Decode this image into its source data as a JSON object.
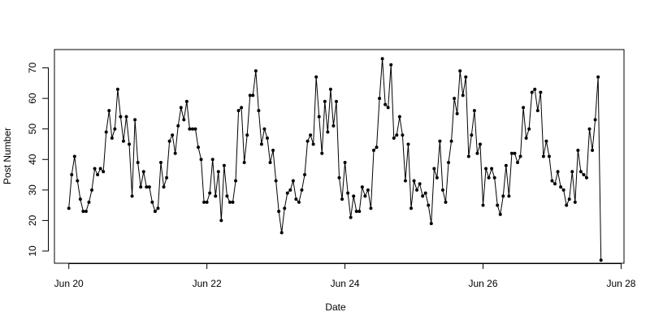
{
  "chart_data": {
    "type": "line",
    "title": "",
    "xlabel": "Date",
    "ylabel": "Post Number",
    "xlim": [
      "2015-06-19T19:00",
      "2015-06-28T01:00"
    ],
    "ylim": [
      6,
      76
    ],
    "xticks": [
      {
        "label": "Jun 20",
        "value": "2015-06-20T00:00"
      },
      {
        "label": "Jun 22",
        "value": "2015-06-22T00:00"
      },
      {
        "label": "Jun 24",
        "value": "2015-06-24T00:00"
      },
      {
        "label": "Jun 26",
        "value": "2015-06-26T00:00"
      },
      {
        "label": "Jun 28",
        "value": "2015-06-28T00:00"
      }
    ],
    "yticks": [
      10,
      20,
      30,
      40,
      50,
      60,
      70
    ],
    "grid": false,
    "x_start": "2015-06-20T00:00",
    "x_step_hours": 1,
    "series": [
      {
        "marker": "filled-circle",
        "color": "#000000",
        "values": [
          24,
          35,
          41,
          33,
          27,
          23,
          23,
          26,
          30,
          37,
          35,
          37,
          36,
          49,
          56,
          47,
          50,
          63,
          54,
          46,
          54,
          45,
          28,
          53,
          39,
          31,
          36,
          31,
          31,
          26,
          23,
          24,
          39,
          31,
          34,
          46,
          48,
          42,
          51,
          57,
          53,
          59,
          50,
          50,
          50,
          44,
          40,
          26,
          26,
          29,
          40,
          28,
          36,
          20,
          38,
          28,
          26,
          26,
          33,
          56,
          57,
          39,
          48,
          61,
          61,
          69,
          56,
          45,
          50,
          47,
          39,
          43,
          33,
          23,
          16,
          24,
          29,
          30,
          33,
          27,
          26,
          30,
          35,
          46,
          48,
          45,
          67,
          54,
          42,
          59,
          49,
          63,
          51,
          59,
          34,
          27,
          39,
          29,
          21,
          28,
          23,
          23,
          31,
          28,
          30,
          24,
          43,
          44,
          60,
          73,
          58,
          57,
          71,
          47,
          48,
          54,
          48,
          33,
          45,
          24,
          33,
          30,
          32,
          28,
          29,
          25,
          19,
          37,
          34,
          46,
          30,
          26,
          39,
          46,
          60,
          55,
          69,
          61,
          67,
          41,
          48,
          56,
          42,
          45,
          25,
          37,
          34,
          37,
          34,
          25,
          22,
          28,
          38,
          28,
          42,
          42,
          39,
          41,
          57,
          47,
          50,
          62,
          63,
          56,
          62,
          41,
          46,
          41,
          33,
          32,
          36,
          31,
          30,
          25,
          27,
          36,
          26,
          43,
          36,
          35,
          34,
          50,
          43,
          53,
          67,
          7
        ]
      }
    ]
  }
}
